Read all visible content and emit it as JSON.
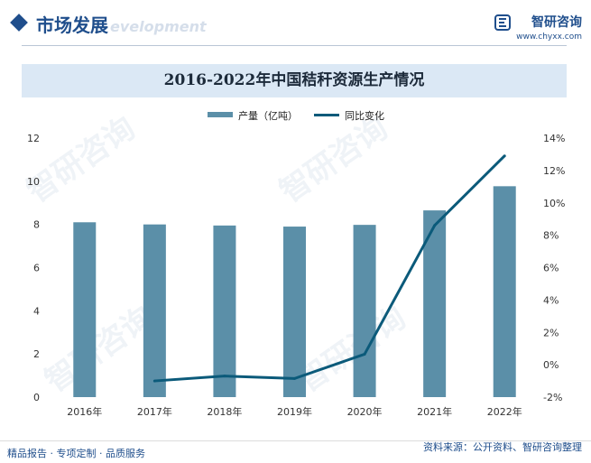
{
  "header": {
    "section_title": "市场发展",
    "section_subtitle": "evelopment",
    "brand_name": "智研咨询",
    "brand_url": "www.chyxx.com"
  },
  "chart_title": "2016-2022年中国秸秆资源生产情况",
  "legend": {
    "bar_label": "产量（亿吨）",
    "line_label": "同比变化"
  },
  "footer": {
    "left": "精品报告 · 专项定制 · 品质服务",
    "right": "资料来源：公开资料、智研咨询整理"
  },
  "watermark": "智研咨询",
  "colors": {
    "bar": "#5b8fa8",
    "line": "#0b5a7a",
    "brand": "#1f4e8c",
    "title_band": "#dbe8f5"
  },
  "chart_data": {
    "type": "bar",
    "categories": [
      "2016年",
      "2017年",
      "2018年",
      "2019年",
      "2020年",
      "2021年",
      "2022年"
    ],
    "series": [
      {
        "name": "产量（亿吨）",
        "type": "bar",
        "axis": "left",
        "values": [
          8.1,
          8.0,
          7.95,
          7.9,
          7.98,
          8.65,
          9.77
        ]
      },
      {
        "name": "同比变化",
        "type": "line",
        "axis": "right",
        "values": [
          null,
          -1.0,
          -0.7,
          -0.85,
          0.65,
          8.6,
          12.9
        ]
      }
    ],
    "y_left": {
      "min": 0,
      "max": 12,
      "ticks": [
        "0",
        "2",
        "4",
        "6",
        "8",
        "10",
        "12"
      ]
    },
    "y_right": {
      "min": -2,
      "max": 14,
      "ticks": [
        "-2%",
        "0%",
        "2%",
        "4%",
        "6%",
        "8%",
        "10%",
        "12%",
        "14%"
      ]
    },
    "grid": false,
    "legend_position": "top-center"
  }
}
